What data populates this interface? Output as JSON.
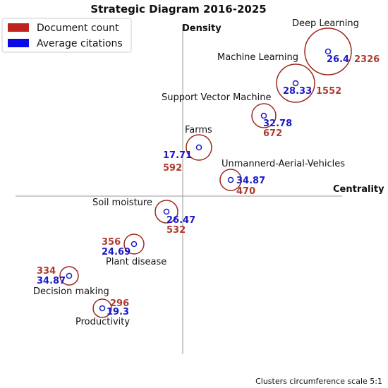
{
  "chart_data": {
    "type": "scatter",
    "title": "Strategic Diagram 2016-2025",
    "xlabel": "Centrality",
    "ylabel": "Density",
    "note": "Clusters circumference scale 5:1",
    "legend": {
      "placement": "top-left",
      "entries": [
        {
          "label": "Document count",
          "color": "#c0231d"
        },
        {
          "label": "Average citations",
          "color": "#0a0ae6"
        }
      ]
    },
    "clusters": [
      {
        "name": "Deep Learning",
        "documents": "2326",
        "citations": "26.4"
      },
      {
        "name": "Machine Learning",
        "documents": "1552",
        "citations": "28.33"
      },
      {
        "name": "Support Vector Machine",
        "documents": "672",
        "citations": "32.78"
      },
      {
        "name": "Farms",
        "documents": "592",
        "citations": "17.71"
      },
      {
        "name": "Unmannerd-Aerial-Vehicles",
        "documents": "470",
        "citations": "34.87"
      },
      {
        "name": "Soil moisture",
        "documents": "532",
        "citations": "26.47"
      },
      {
        "name": "Plant disease",
        "documents": "356",
        "citations": "24.69"
      },
      {
        "name": "Decision making",
        "documents": "334",
        "citations": "34.87"
      },
      {
        "name": "Productivity",
        "documents": "296",
        "citations": "19.3"
      }
    ]
  }
}
